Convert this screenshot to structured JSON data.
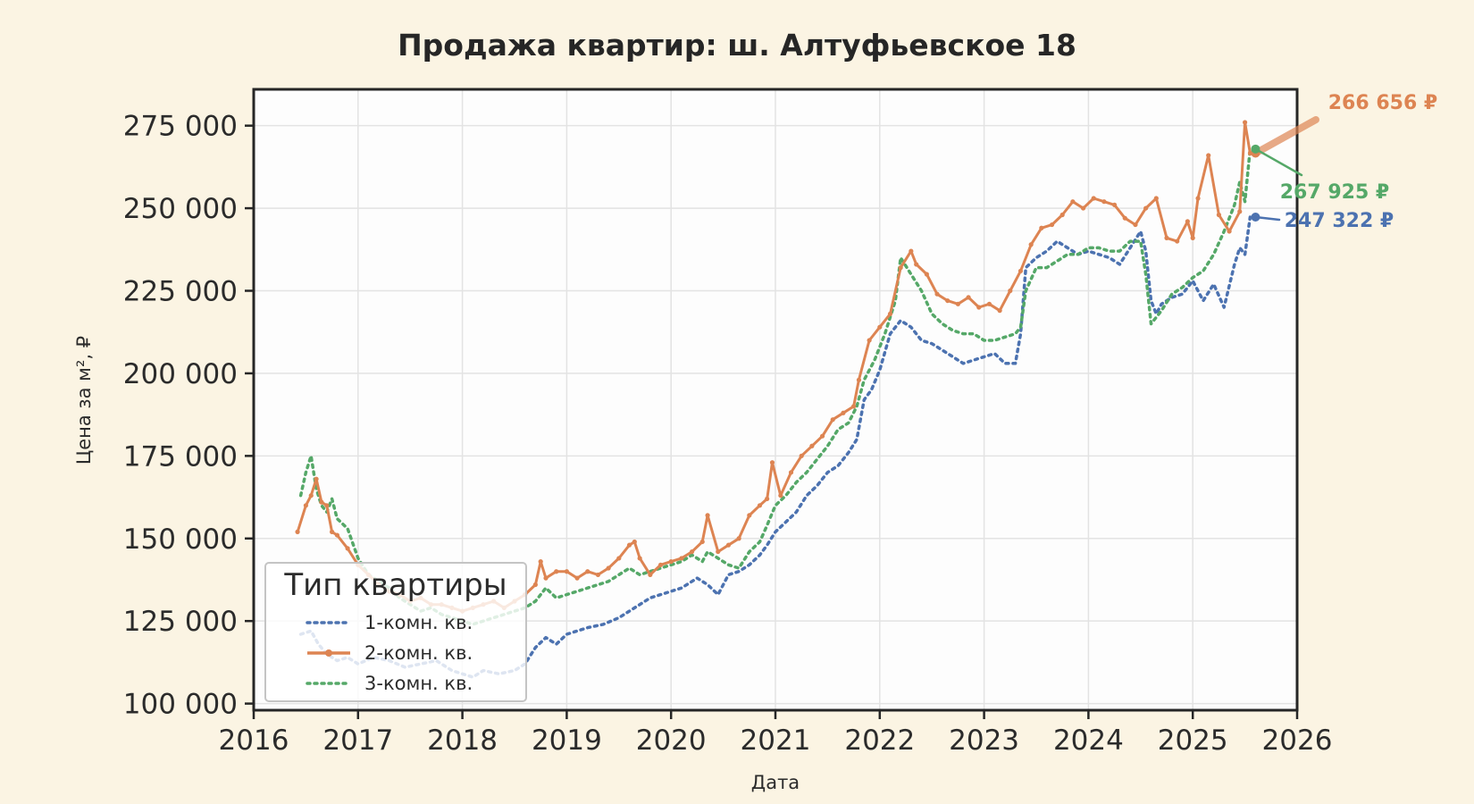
{
  "chart_data": {
    "type": "line",
    "title": "Продажа квартир: ш. Алтуфьевское 18",
    "xlabel": "Дата",
    "ylabel": "Цена за м², ₽",
    "xlim": [
      2016.0,
      2026.0
    ],
    "ylim": [
      98000,
      286000
    ],
    "x_ticks": [
      2016,
      2017,
      2018,
      2019,
      2020,
      2021,
      2022,
      2023,
      2024,
      2025,
      2026
    ],
    "x_tick_labels": [
      "2016",
      "2017",
      "2018",
      "2019",
      "2020",
      "2021",
      "2022",
      "2023",
      "2024",
      "2025",
      "2026"
    ],
    "y_ticks": [
      100000,
      125000,
      150000,
      175000,
      200000,
      225000,
      250000,
      275000
    ],
    "y_tick_labels": [
      "100 000",
      "125 000",
      "150 000",
      "175 000",
      "200 000",
      "225 000",
      "250 000",
      "275 000"
    ],
    "grid": true,
    "legend": {
      "title": "Тип квартиры",
      "position": "lower left"
    },
    "series": [
      {
        "name": "1-комн. кв.",
        "color": "#4c72b0",
        "style": "dotted",
        "x": [
          2016.45,
          2016.55,
          2016.62,
          2016.7,
          2016.8,
          2016.9,
          2017.0,
          2017.15,
          2017.3,
          2017.45,
          2017.6,
          2017.75,
          2017.9,
          2018.0,
          2018.1,
          2018.2,
          2018.35,
          2018.5,
          2018.6,
          2018.7,
          2018.8,
          2018.9,
          2019.0,
          2019.1,
          2019.2,
          2019.35,
          2019.5,
          2019.6,
          2019.7,
          2019.8,
          2019.9,
          2020.0,
          2020.1,
          2020.2,
          2020.25,
          2020.35,
          2020.45,
          2020.55,
          2020.65,
          2020.75,
          2020.85,
          2020.92,
          2021.0,
          2021.1,
          2021.2,
          2021.3,
          2021.4,
          2021.5,
          2021.6,
          2021.7,
          2021.78,
          2021.85,
          2021.92,
          2022.0,
          2022.1,
          2022.2,
          2022.3,
          2022.4,
          2022.5,
          2022.6,
          2022.7,
          2022.8,
          2022.9,
          2023.0,
          2023.1,
          2023.2,
          2023.3,
          2023.35,
          2023.4,
          2023.5,
          2023.6,
          2023.7,
          2023.8,
          2023.9,
          2024.0,
          2024.1,
          2024.2,
          2024.3,
          2024.4,
          2024.5,
          2024.55,
          2024.6,
          2024.65,
          2024.7,
          2024.8,
          2024.9,
          2025.0,
          2025.05,
          2025.1,
          2025.2,
          2025.3,
          2025.4,
          2025.45,
          2025.5,
          2025.55
        ],
        "y": [
          121000,
          122000,
          118000,
          115000,
          113000,
          114000,
          112000,
          114000,
          113000,
          111000,
          112000,
          113000,
          110000,
          109000,
          108000,
          110000,
          109000,
          110000,
          112000,
          117000,
          120000,
          118000,
          121000,
          122000,
          123000,
          124000,
          126000,
          128000,
          130000,
          132000,
          133000,
          134000,
          135000,
          137000,
          138000,
          136000,
          133000,
          139000,
          140000,
          142000,
          145000,
          148000,
          152000,
          155000,
          158000,
          163000,
          166000,
          170000,
          172000,
          176000,
          180000,
          192000,
          195000,
          201000,
          212000,
          216000,
          214000,
          210000,
          209000,
          207000,
          205000,
          203000,
          204000,
          205000,
          206000,
          203000,
          203000,
          212000,
          232000,
          235000,
          237000,
          240000,
          238000,
          236000,
          237000,
          236000,
          235000,
          233000,
          238000,
          243000,
          237000,
          222000,
          218000,
          221000,
          223000,
          224000,
          228000,
          225000,
          222000,
          227000,
          220000,
          233000,
          238000,
          236000,
          247322
        ]
      },
      {
        "name": "2-комн. кв.",
        "color": "#dd8452",
        "style": "solid-marker",
        "x": [
          2016.42,
          2016.5,
          2016.55,
          2016.6,
          2016.65,
          2016.7,
          2016.75,
          2016.8,
          2016.9,
          2017.0,
          2017.1,
          2017.2,
          2017.3,
          2017.4,
          2017.5,
          2017.6,
          2017.7,
          2017.8,
          2017.9,
          2018.0,
          2018.1,
          2018.2,
          2018.3,
          2018.4,
          2018.5,
          2018.6,
          2018.7,
          2018.75,
          2018.8,
          2018.9,
          2019.0,
          2019.1,
          2019.2,
          2019.3,
          2019.4,
          2019.5,
          2019.6,
          2019.65,
          2019.7,
          2019.8,
          2019.9,
          2020.0,
          2020.1,
          2020.2,
          2020.3,
          2020.35,
          2020.45,
          2020.55,
          2020.65,
          2020.75,
          2020.85,
          2020.92,
          2020.97,
          2021.05,
          2021.15,
          2021.25,
          2021.35,
          2021.45,
          2021.55,
          2021.65,
          2021.75,
          2021.8,
          2021.9,
          2022.0,
          2022.1,
          2022.2,
          2022.3,
          2022.35,
          2022.45,
          2022.55,
          2022.65,
          2022.75,
          2022.85,
          2022.95,
          2023.05,
          2023.15,
          2023.25,
          2023.35,
          2023.45,
          2023.55,
          2023.65,
          2023.75,
          2023.85,
          2023.95,
          2024.05,
          2024.15,
          2024.25,
          2024.35,
          2024.45,
          2024.55,
          2024.65,
          2024.75,
          2024.85,
          2024.95,
          2025.0,
          2025.05,
          2025.15,
          2025.25,
          2025.35,
          2025.45,
          2025.5,
          2025.55
        ],
        "y": [
          152000,
          160000,
          163000,
          168000,
          161000,
          160000,
          152000,
          151000,
          147000,
          142000,
          139000,
          136000,
          134000,
          133000,
          131000,
          132000,
          130000,
          130000,
          129000,
          128000,
          129000,
          130000,
          131000,
          129000,
          131000,
          133000,
          136000,
          143000,
          138000,
          140000,
          140000,
          138000,
          140000,
          139000,
          141000,
          144000,
          148000,
          149000,
          144000,
          139000,
          142000,
          143000,
          144000,
          146000,
          149000,
          157000,
          146000,
          148000,
          150000,
          157000,
          160000,
          162000,
          173000,
          163000,
          170000,
          175000,
          178000,
          181000,
          186000,
          188000,
          190000,
          198000,
          210000,
          214000,
          218000,
          232000,
          237000,
          233000,
          230000,
          224000,
          222000,
          221000,
          223000,
          220000,
          221000,
          219000,
          225000,
          231000,
          239000,
          244000,
          245000,
          248000,
          252000,
          250000,
          253000,
          252000,
          251000,
          247000,
          245000,
          250000,
          253000,
          241000,
          240000,
          246000,
          241000,
          253000,
          266000,
          248000,
          243000,
          249000,
          276000,
          266656
        ]
      },
      {
        "name": "3-комн. кв.",
        "color": "#55a868",
        "style": "dotted",
        "x": [
          2016.45,
          2016.5,
          2016.55,
          2016.6,
          2016.65,
          2016.7,
          2016.75,
          2016.8,
          2016.9,
          2017.0,
          2017.1,
          2017.2,
          2017.3,
          2017.4,
          2017.5,
          2017.6,
          2017.7,
          2017.8,
          2017.9,
          2018.0,
          2018.1,
          2018.2,
          2018.3,
          2018.4,
          2018.5,
          2018.6,
          2018.7,
          2018.8,
          2018.9,
          2019.0,
          2019.1,
          2019.2,
          2019.3,
          2019.4,
          2019.5,
          2019.6,
          2019.7,
          2019.8,
          2019.9,
          2020.0,
          2020.1,
          2020.2,
          2020.3,
          2020.35,
          2020.45,
          2020.55,
          2020.65,
          2020.75,
          2020.85,
          2020.92,
          2021.0,
          2021.1,
          2021.2,
          2021.3,
          2021.4,
          2021.5,
          2021.6,
          2021.7,
          2021.78,
          2021.85,
          2021.95,
          2022.05,
          2022.15,
          2022.2,
          2022.3,
          2022.4,
          2022.5,
          2022.6,
          2022.7,
          2022.8,
          2022.9,
          2023.0,
          2023.1,
          2023.2,
          2023.3,
          2023.35,
          2023.4,
          2023.5,
          2023.6,
          2023.7,
          2023.8,
          2023.9,
          2024.0,
          2024.1,
          2024.2,
          2024.3,
          2024.4,
          2024.5,
          2024.55,
          2024.6,
          2024.7,
          2024.8,
          2024.9,
          2025.0,
          2025.1,
          2025.2,
          2025.3,
          2025.4,
          2025.45,
          2025.5,
          2025.55
        ],
        "y": [
          163000,
          170000,
          175000,
          165000,
          160000,
          158000,
          162000,
          156000,
          153000,
          144000,
          139000,
          137000,
          135000,
          132000,
          130000,
          128000,
          129000,
          127000,
          126000,
          125000,
          124000,
          125000,
          126000,
          127000,
          128000,
          129000,
          131000,
          135000,
          132000,
          133000,
          134000,
          135000,
          136000,
          137000,
          139000,
          141000,
          139000,
          140000,
          141000,
          142000,
          143000,
          145000,
          143000,
          146000,
          144000,
          142000,
          141000,
          146000,
          149000,
          154000,
          160000,
          163000,
          167000,
          170000,
          174000,
          178000,
          183000,
          185000,
          190000,
          198000,
          204000,
          212000,
          222000,
          235000,
          230000,
          225000,
          218000,
          215000,
          213000,
          212000,
          212000,
          210000,
          210000,
          211000,
          212000,
          214000,
          225000,
          232000,
          232000,
          234000,
          236000,
          236000,
          238000,
          238000,
          237000,
          237000,
          240000,
          240000,
          230000,
          215000,
          219000,
          224000,
          226000,
          229000,
          231000,
          236000,
          243000,
          251000,
          258000,
          252000,
          267925
        ]
      }
    ],
    "annotations": [
      {
        "text": "266 656 ₽",
        "series": "2-комн. кв.",
        "color": "#dd8452"
      },
      {
        "text": "267 925 ₽",
        "series": "3-комн. кв.",
        "color": "#55a868"
      },
      {
        "text": "247 322 ₽",
        "series": "1-комн. кв.",
        "color": "#4c72b0"
      }
    ]
  }
}
